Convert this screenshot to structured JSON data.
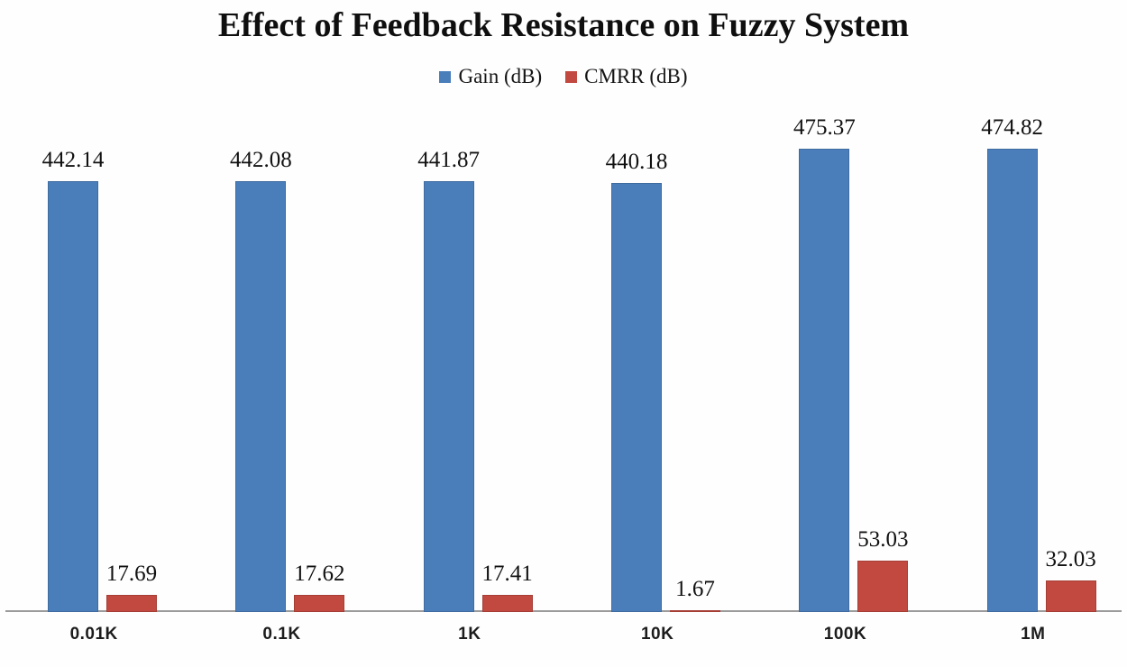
{
  "title": "Effect of Feedback Resistance on Fuzzy System",
  "legend": [
    {
      "label": "Gain (dB)",
      "color": "#4a7ebb"
    },
    {
      "label": "CMRR (dB)",
      "color": "#c2493f"
    }
  ],
  "chart_data": {
    "type": "bar",
    "title": "Effect of Feedback Resistance on Fuzzy System",
    "categories": [
      "0.01K",
      "0.1K",
      "1K",
      "10K",
      "100K",
      "1M"
    ],
    "series": [
      {
        "name": "Gain (dB)",
        "color": "#4a7ebb",
        "values": [
          442.14,
          442.08,
          441.87,
          440.18,
          475.37,
          474.82
        ]
      },
      {
        "name": "CMRR (dB)",
        "color": "#c2493f",
        "values": [
          17.69,
          17.62,
          17.41,
          1.67,
          53.03,
          32.03
        ]
      }
    ],
    "xlabel": "",
    "ylabel": "",
    "ylim": [
      0,
      535
    ],
    "grid": false,
    "legend_position": "top-center",
    "data_labels": true,
    "axis_line_color": "#9b9b9b"
  }
}
